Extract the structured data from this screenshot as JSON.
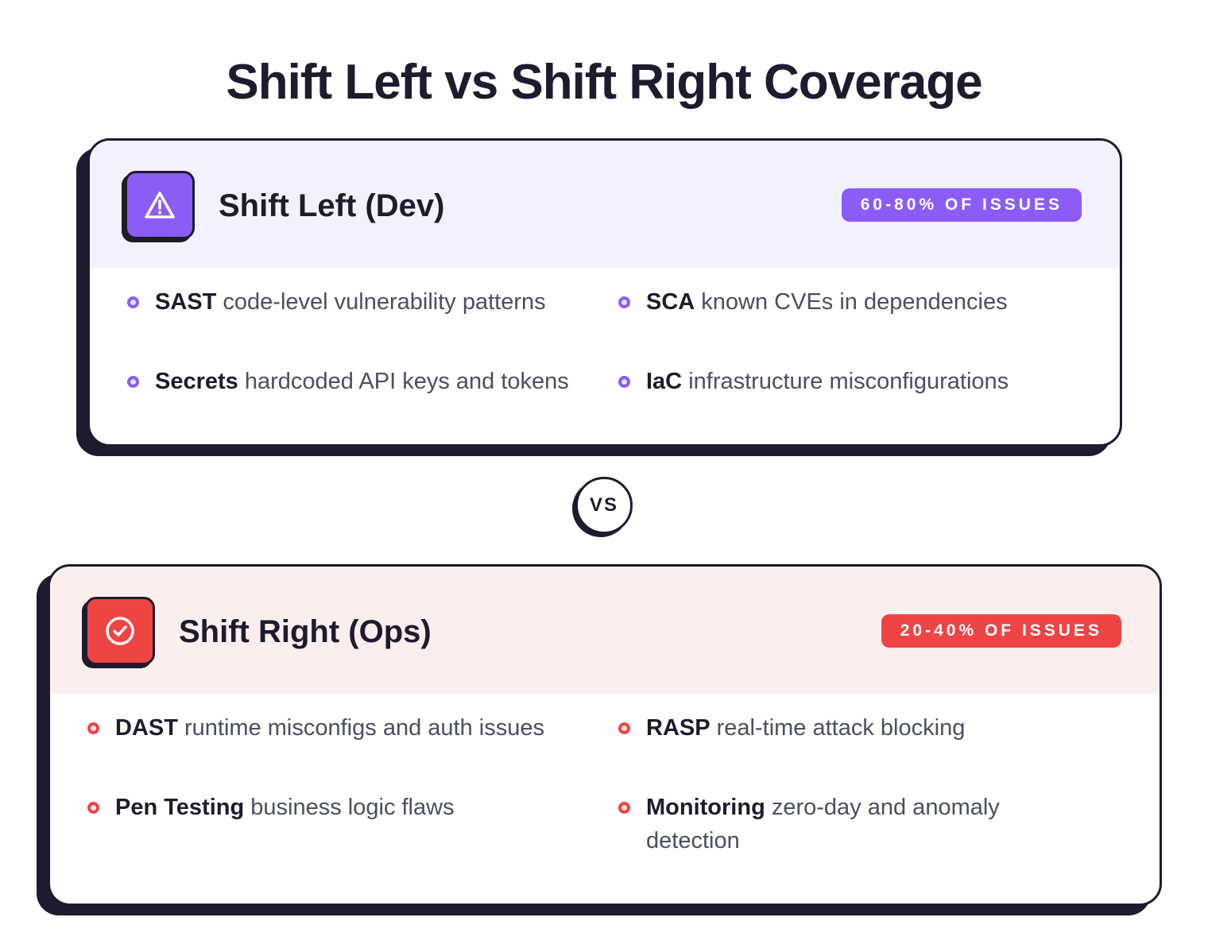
{
  "title": "Shift Left vs Shift Right Coverage",
  "vs_label": "VS",
  "cards": [
    {
      "title": "Shift Left (Dev)",
      "badge": "60-80% OF ISSUES",
      "icon": "warning-triangle-icon",
      "accent": "#8b5cf6",
      "header_bg": "#f4f1fe",
      "items": [
        {
          "term": "SAST",
          "desc": "code-level vulnerability patterns"
        },
        {
          "term": "SCA",
          "desc": "known CVEs in dependencies"
        },
        {
          "term": "Secrets",
          "desc": "hardcoded API keys and tokens"
        },
        {
          "term": "IaC",
          "desc": "infrastructure misconfigurations"
        }
      ]
    },
    {
      "title": "Shift Right (Ops)",
      "badge": "20-40% OF ISSUES",
      "icon": "check-circle-icon",
      "accent": "#ef4444",
      "header_bg": "#fdeeee",
      "items": [
        {
          "term": "DAST",
          "desc": "runtime misconfigs and auth issues"
        },
        {
          "term": "RASP",
          "desc": "real-time attack blocking"
        },
        {
          "term": "Pen Testing",
          "desc": "business logic flaws"
        },
        {
          "term": "Monitoring",
          "desc": "zero-day and anomaly detection"
        }
      ]
    }
  ]
}
